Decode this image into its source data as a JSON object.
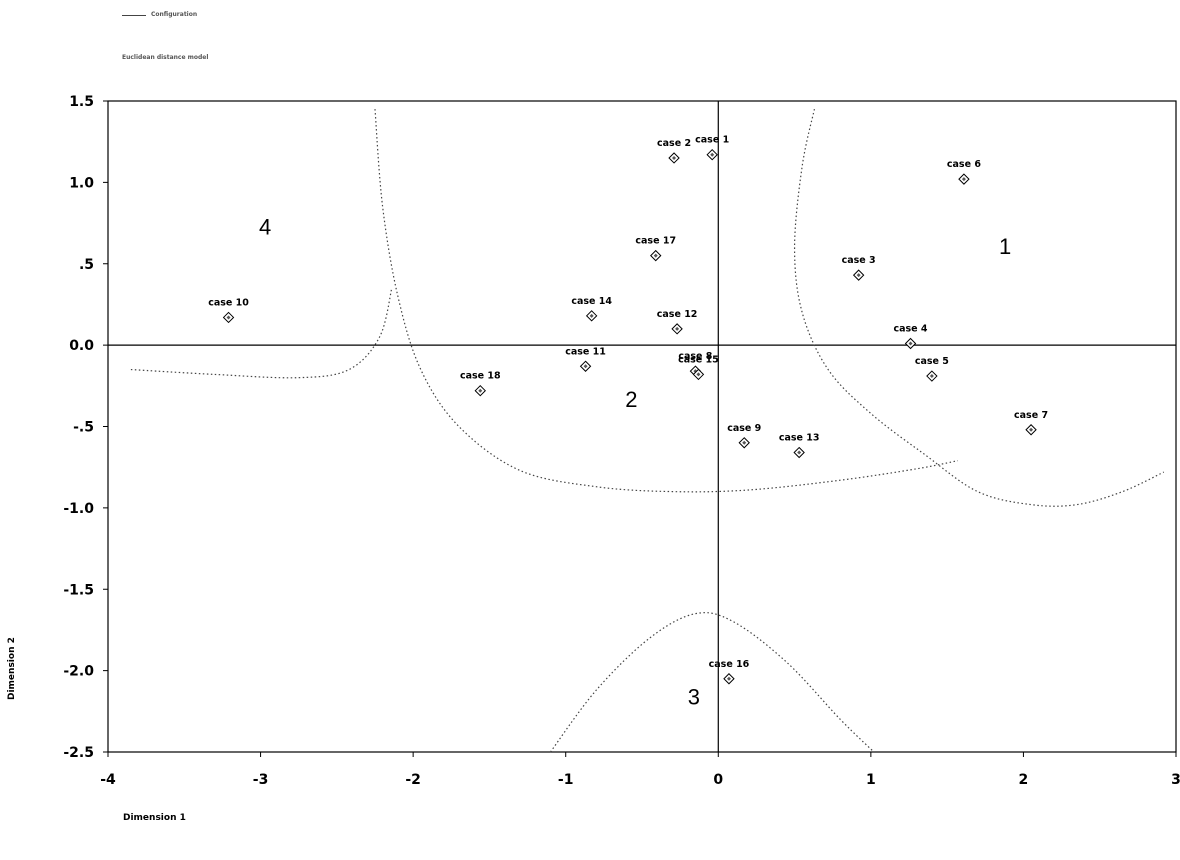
{
  "chart_data": {
    "type": "scatter",
    "title": "Configuration",
    "subtitle": "Euclidean distance model",
    "xlabel": "Dimension 1",
    "ylabel": "Dimension 2",
    "xlim": [
      -4,
      3
    ],
    "ylim": [
      -2.5,
      1.5
    ],
    "xticks": [
      -4,
      -3,
      -2,
      -1,
      0,
      1,
      2,
      3
    ],
    "xtick_labels": [
      "-4",
      "-3",
      "-2",
      "-1",
      "0",
      "1",
      "2",
      "3"
    ],
    "yticks": [
      1.5,
      1.0,
      0.5,
      0.0,
      -0.5,
      -1.0,
      -1.5,
      -2.0,
      -2.5
    ],
    "ytick_labels": [
      "1.5",
      "1.0",
      ".5",
      "0.0",
      "-.5",
      "-1.0",
      "-1.5",
      "-2.0",
      "-2.5"
    ],
    "grid": false,
    "reference_lines": {
      "x": 0,
      "y": 0
    },
    "marker": "diamond",
    "points": [
      {
        "label": "case 1",
        "x": -0.04,
        "y": 1.17
      },
      {
        "label": "case 2",
        "x": -0.29,
        "y": 1.15
      },
      {
        "label": "case 3",
        "x": 0.92,
        "y": 0.43
      },
      {
        "label": "case 4",
        "x": 1.26,
        "y": 0.01
      },
      {
        "label": "case 5",
        "x": 1.4,
        "y": -0.19
      },
      {
        "label": "case 6",
        "x": 1.61,
        "y": 1.02
      },
      {
        "label": "case 7",
        "x": 2.05,
        "y": -0.52
      },
      {
        "label": "case 8",
        "x": -0.15,
        "y": -0.16
      },
      {
        "label": "case 9",
        "x": 0.17,
        "y": -0.6
      },
      {
        "label": "case 10",
        "x": -3.21,
        "y": 0.17
      },
      {
        "label": "case 11",
        "x": -0.87,
        "y": -0.13
      },
      {
        "label": "case 12",
        "x": -0.27,
        "y": 0.1
      },
      {
        "label": "case 13",
        "x": 0.53,
        "y": -0.66
      },
      {
        "label": "case 14",
        "x": -0.83,
        "y": 0.18
      },
      {
        "label": "case 15",
        "x": -0.13,
        "y": -0.18
      },
      {
        "label": "case 16",
        "x": 0.07,
        "y": -2.05
      },
      {
        "label": "case 17",
        "x": -0.41,
        "y": 0.55
      },
      {
        "label": "case 18",
        "x": -1.56,
        "y": -0.28
      }
    ],
    "annotations": [
      {
        "text": "1",
        "x": 1.88,
        "y": 0.61
      },
      {
        "text": "2",
        "x": -0.57,
        "y": -0.33
      },
      {
        "text": "3",
        "x": -0.16,
        "y": -2.16
      },
      {
        "text": "4",
        "x": -2.97,
        "y": 0.73
      }
    ],
    "boundaries": [
      [
        [
          -2.25,
          1.45
        ],
        [
          -2.2,
          0.85
        ],
        [
          -2.1,
          0.3
        ],
        [
          -1.95,
          -0.15
        ],
        [
          -1.7,
          -0.5
        ],
        [
          -1.3,
          -0.77
        ],
        [
          -0.8,
          -0.87
        ],
        [
          -0.3,
          -0.9
        ],
        [
          0.2,
          -0.89
        ],
        [
          0.8,
          -0.83
        ],
        [
          1.3,
          -0.76
        ],
        [
          1.57,
          -0.71
        ]
      ],
      [
        [
          -3.85,
          -0.15
        ],
        [
          -3.3,
          -0.18
        ],
        [
          -2.75,
          -0.2
        ],
        [
          -2.42,
          -0.15
        ],
        [
          -2.22,
          0.05
        ],
        [
          -2.14,
          0.35
        ]
      ],
      [
        [
          0.63,
          1.45
        ],
        [
          0.55,
          1.1
        ],
        [
          0.5,
          0.6
        ],
        [
          0.55,
          0.2
        ],
        [
          0.72,
          -0.15
        ],
        [
          1.0,
          -0.42
        ],
        [
          1.35,
          -0.67
        ],
        [
          1.7,
          -0.9
        ],
        [
          2.05,
          -0.98
        ],
        [
          2.35,
          -0.98
        ],
        [
          2.65,
          -0.9
        ],
        [
          2.92,
          -0.78
        ]
      ],
      [
        [
          -1.1,
          -2.5
        ],
        [
          -0.8,
          -2.12
        ],
        [
          -0.45,
          -1.8
        ],
        [
          -0.15,
          -1.65
        ],
        [
          0.1,
          -1.7
        ],
        [
          0.45,
          -1.95
        ],
        [
          0.8,
          -2.3
        ],
        [
          1.02,
          -2.5
        ]
      ]
    ]
  }
}
